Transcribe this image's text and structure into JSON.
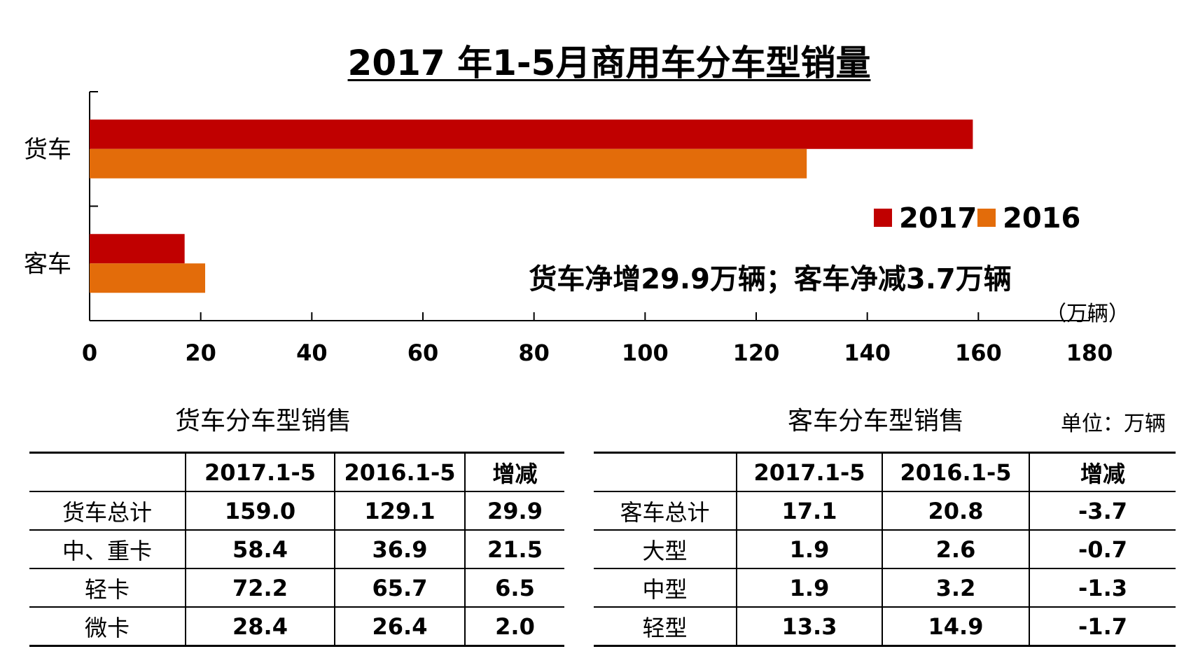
{
  "chart_data": {
    "type": "bar",
    "orientation": "horizontal",
    "title": "2017 年1-5月商用车分车型销量",
    "categories": [
      "货车",
      "客车"
    ],
    "series": [
      {
        "name": "2017",
        "color": "#c00000",
        "values": [
          159.0,
          17.1
        ]
      },
      {
        "name": "2016",
        "color": "#e36c0a",
        "values": [
          129.1,
          20.8
        ]
      }
    ],
    "xlim": [
      0,
      180
    ],
    "xticks": [
      0,
      20,
      40,
      60,
      80,
      100,
      120,
      140,
      160,
      180
    ],
    "unit_label": "（万辆）",
    "annotation": "货车净增29.9万辆；客车净减3.7万辆",
    "legend_position": "right"
  },
  "truck_table": {
    "title": "货车分车型销售",
    "headers": [
      "",
      "2017.1-5",
      "2016.1-5",
      "增减"
    ],
    "rows": [
      [
        "货车总计",
        "159.0",
        "129.1",
        "29.9"
      ],
      [
        "中、重卡",
        "58.4",
        "36.9",
        "21.5"
      ],
      [
        "轻卡",
        "72.2",
        "65.7",
        "6.5"
      ],
      [
        "微卡",
        "28.4",
        "26.4",
        "2.0"
      ]
    ]
  },
  "bus_table": {
    "title": "客车分车型销售",
    "unit": "单位：万辆",
    "headers": [
      "",
      "2017.1-5",
      "2016.1-5",
      "增减"
    ],
    "rows": [
      [
        "客车总计",
        "17.1",
        "20.8",
        "-3.7"
      ],
      [
        "大型",
        "1.9",
        "2.6",
        "-0.7"
      ],
      [
        "中型",
        "1.9",
        "3.2",
        "-1.3"
      ],
      [
        "轻型",
        "13.3",
        "14.9",
        "-1.7"
      ]
    ]
  }
}
